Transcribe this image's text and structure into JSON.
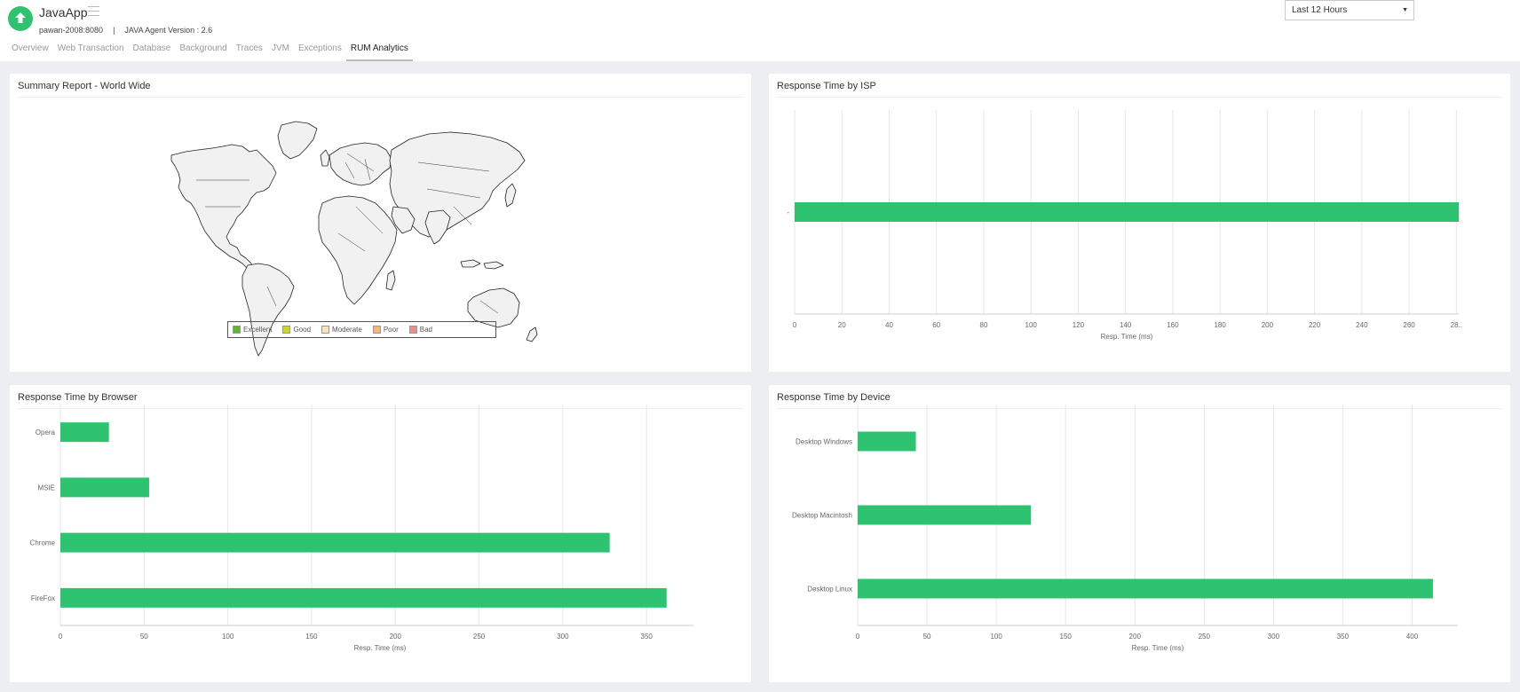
{
  "app": {
    "name": "JavaApp",
    "host": "pawan-2008:8080",
    "separator": "|",
    "agent_version": "JAVA Agent Version : 2.6"
  },
  "tabs": [
    {
      "label": "Overview",
      "active": false
    },
    {
      "label": "Web Transaction",
      "active": false
    },
    {
      "label": "Database",
      "active": false
    },
    {
      "label": "Background",
      "active": false
    },
    {
      "label": "Traces",
      "active": false
    },
    {
      "label": "JVM",
      "active": false
    },
    {
      "label": "Exceptions",
      "active": false
    },
    {
      "label": "RUM Analytics",
      "active": true
    }
  ],
  "time_range": {
    "selected": "Last 12 Hours"
  },
  "colors": {
    "accent": "#2ec370",
    "bar": "#2ec370"
  },
  "world_panel": {
    "title": "Summary Report - World Wide",
    "legend": [
      {
        "label": "Excellent",
        "color": "#5cb82a"
      },
      {
        "label": "Good",
        "color": "#c7d82b"
      },
      {
        "label": "Moderate",
        "color": "#f6e3bc"
      },
      {
        "label": "Poor",
        "color": "#f4b67c"
      },
      {
        "label": "Bad",
        "color": "#eb8f8a"
      }
    ]
  },
  "chart_data": [
    {
      "type": "bar",
      "orientation": "horizontal",
      "title": "Response Time by ISP",
      "categories": [
        "-"
      ],
      "values": [
        281
      ],
      "xlabel": "Resp. Time (ms)",
      "ticks": [
        "0",
        "20",
        "40",
        "60",
        "80",
        "100",
        "120",
        "140",
        "160",
        "180",
        "200",
        "220",
        "240",
        "260",
        "28.."
      ],
      "xlim": [
        0,
        281
      ],
      "grid": true
    },
    {
      "type": "bar",
      "orientation": "horizontal",
      "title": "Response Time by Browser",
      "categories": [
        "Opera",
        "MSIE",
        "Chrome",
        "FireFox"
      ],
      "values": [
        29,
        53,
        328,
        362
      ],
      "xlabel": "Resp. Time (ms)",
      "ticks": [
        "0",
        "50",
        "100",
        "150",
        "200",
        "250",
        "300",
        "350"
      ],
      "xlim": [
        0,
        378
      ],
      "grid": true
    },
    {
      "type": "bar",
      "orientation": "horizontal",
      "title": "Response Time by Device",
      "categories": [
        "Desktop Windows",
        "Desktop Macintosh",
        "Desktop Linux"
      ],
      "values": [
        42,
        125,
        415
      ],
      "xlabel": "Resp. Time (ms)",
      "ticks": [
        "0",
        "50",
        "100",
        "150",
        "200",
        "250",
        "300",
        "350",
        "400"
      ],
      "xlim": [
        0,
        433
      ],
      "grid": true
    }
  ]
}
